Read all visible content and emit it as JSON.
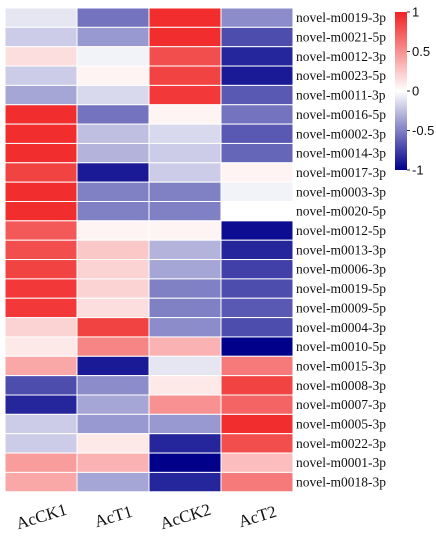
{
  "chart_data": {
    "type": "heatmap",
    "columns": [
      "AcCK1",
      "AcT1",
      "AcCK2",
      "AcT2"
    ],
    "rows": [
      "novel-m0019-3p",
      "novel-m0021-5p",
      "novel-m0012-3p",
      "novel-m0023-5p",
      "novel-m0011-3p",
      "novel-m0016-5p",
      "novel-m0002-3p",
      "novel-m0014-3p",
      "novel-m0017-3p",
      "novel-m0003-3p",
      "novel-m0020-5p",
      "novel-m0012-5p",
      "novel-m0013-3p",
      "novel-m0006-3p",
      "novel-m0019-5p",
      "novel-m0009-5p",
      "novel-m0004-3p",
      "novel-m0010-5p",
      "novel-m0015-3p",
      "novel-m0008-3p",
      "novel-m0007-3p",
      "novel-m0005-3p",
      "novel-m0022-3p",
      "novel-m0001-3p",
      "novel-m0018-3p"
    ],
    "values": [
      [
        -0.1,
        -0.55,
        0.95,
        -0.45
      ],
      [
        -0.2,
        -0.4,
        0.95,
        -0.7
      ],
      [
        0.15,
        -0.05,
        0.8,
        -0.85
      ],
      [
        -0.2,
        0.05,
        0.85,
        -0.9
      ],
      [
        -0.35,
        -0.15,
        0.9,
        -0.65
      ],
      [
        0.95,
        -0.55,
        0.05,
        -0.55
      ],
      [
        0.95,
        -0.25,
        -0.15,
        -0.65
      ],
      [
        0.95,
        -0.3,
        -0.2,
        -0.6
      ],
      [
        0.85,
        -0.9,
        -0.2,
        0.05
      ],
      [
        0.95,
        -0.5,
        -0.5,
        -0.05
      ],
      [
        0.95,
        -0.5,
        -0.5,
        0.0
      ],
      [
        0.75,
        0.05,
        0.05,
        -0.95
      ],
      [
        0.8,
        0.25,
        -0.3,
        -0.85
      ],
      [
        0.85,
        0.2,
        -0.35,
        -0.75
      ],
      [
        0.9,
        0.2,
        -0.5,
        -0.7
      ],
      [
        0.9,
        0.15,
        -0.5,
        -0.65
      ],
      [
        0.2,
        0.85,
        -0.45,
        -0.7
      ],
      [
        0.1,
        0.55,
        0.35,
        -1.0
      ],
      [
        0.4,
        -0.9,
        -0.1,
        0.6
      ],
      [
        -0.7,
        -0.45,
        0.1,
        0.85
      ],
      [
        -0.85,
        -0.35,
        0.5,
        0.7
      ],
      [
        -0.2,
        -0.4,
        -0.4,
        0.95
      ],
      [
        -0.2,
        0.1,
        -0.85,
        0.8
      ],
      [
        0.45,
        0.35,
        -1.0,
        0.3
      ],
      [
        0.4,
        -0.35,
        -0.85,
        0.6
      ]
    ],
    "colorscale": {
      "low": "#00008b",
      "mid": "#ffffff",
      "high": "#f02222"
    },
    "colorbar": {
      "range": [
        -1,
        1
      ],
      "ticks": [
        1,
        0.5,
        0,
        -0.5,
        -1
      ],
      "tick_labels": [
        "1",
        "0.5",
        "0",
        "-0.5",
        "-1"
      ]
    },
    "grid": "white cell borders"
  }
}
